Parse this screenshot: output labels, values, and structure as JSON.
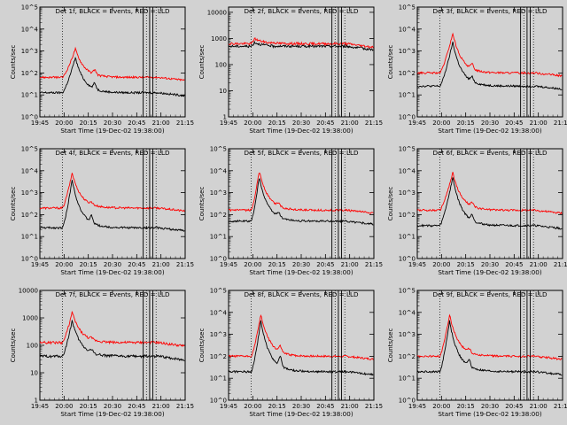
{
  "figure": {
    "background": "#d2d2d2",
    "xtick_labels": [
      "19:45",
      "20:00",
      "20:15",
      "20:30",
      "20:45",
      "21:00",
      "21:15"
    ],
    "xlabel": "Start Time (19-Dec-02 19:38:00)",
    "ylabel": "Counts/sec",
    "series_colors": {
      "events": "#000000",
      "lld": "#ff0000"
    }
  },
  "chart_data": [
    {
      "type": "line",
      "title": "Det 1f, BLACK = Events, RED = LLD",
      "xlabel": "Start Time (19-Dec-02 19:38:00)",
      "ylabel": "Counts/sec",
      "yscale": "log",
      "yticks": [
        "10^0",
        "10^1",
        "10^2",
        "10^3",
        "10^4",
        "10^5"
      ],
      "ylim_log": [
        0,
        5
      ],
      "xlim_min": [
        7,
        97
      ],
      "xticks": [
        "19:45",
        "20:00",
        "20:15",
        "20:30",
        "20:45",
        "21:00",
        "21:15"
      ],
      "series": [
        {
          "name": "Events",
          "color": "#000000",
          "base": 1.1,
          "peak": 2.7,
          "peak_at": 29,
          "shoulder": 1.6
        },
        {
          "name": "LLD",
          "color": "#ff0000",
          "base": 1.8,
          "peak": 3.1,
          "peak_at": 29,
          "shoulder": 2.2
        }
      ]
    },
    {
      "type": "line",
      "title": "Det 2f, BLACK = Events, RED = LLD",
      "xlabel": "Start Time (19-Dec-02 19:38:00)",
      "ylabel": "Counts/sec",
      "yscale": "log",
      "yticks": [
        "1",
        "10",
        "100",
        "1000",
        "10000"
      ],
      "ylim_log": [
        0,
        4.2
      ],
      "xlim_min": [
        7,
        97
      ],
      "xticks": [
        "19:45",
        "20:00",
        "20:15",
        "20:30",
        "20:45",
        "21:00",
        "21:15"
      ],
      "series": [
        {
          "name": "Events",
          "color": "#000000",
          "base": 2.7,
          "peak": 2.85,
          "peak_at": 23,
          "shoulder": 2.65
        },
        {
          "name": "LLD",
          "color": "#ff0000",
          "base": 2.8,
          "peak": 3.0,
          "peak_at": 23,
          "shoulder": 2.85
        }
      ]
    },
    {
      "type": "line",
      "title": "Det 3f, BLACK = Events, RED = LLD",
      "xlabel": "Start Time (19-Dec-02 19:38:00)",
      "ylabel": "Counts/sec",
      "yscale": "log",
      "yticks": [
        "10^0",
        "10^1",
        "10^2",
        "10^3",
        "10^4",
        "10^5"
      ],
      "ylim_log": [
        0,
        5
      ],
      "xlim_min": [
        7,
        97
      ],
      "xticks": [
        "19:45",
        "20:00",
        "20:15",
        "20:30",
        "20:45",
        "21:00",
        "21:15"
      ],
      "series": [
        {
          "name": "Events",
          "color": "#000000",
          "base": 1.4,
          "peak": 3.4,
          "peak_at": 29,
          "shoulder": 1.8
        },
        {
          "name": "LLD",
          "color": "#ff0000",
          "base": 2.0,
          "peak": 3.8,
          "peak_at": 29,
          "shoulder": 2.4
        }
      ]
    },
    {
      "type": "line",
      "title": "Det 4f, BLACK = Events, RED = LLD",
      "xlabel": "Start Time (19-Dec-02 19:38:00)",
      "ylabel": "Counts/sec",
      "yscale": "log",
      "yticks": [
        "10^0",
        "10^1",
        "10^2",
        "10^3",
        "10^4",
        "10^5"
      ],
      "ylim_log": [
        0,
        5
      ],
      "xlim_min": [
        7,
        97
      ],
      "xticks": [
        "19:45",
        "20:00",
        "20:15",
        "20:30",
        "20:45",
        "21:00",
        "21:15"
      ],
      "series": [
        {
          "name": "Events",
          "color": "#000000",
          "base": 1.4,
          "peak": 3.6,
          "peak_at": 27,
          "shoulder": 2.0
        },
        {
          "name": "LLD",
          "color": "#ff0000",
          "base": 2.3,
          "peak": 3.9,
          "peak_at": 27,
          "shoulder": 2.5
        }
      ]
    },
    {
      "type": "line",
      "title": "Det 5f, BLACK = Events, RED = LLD",
      "xlabel": "Start Time (19-Dec-02 19:38:00)",
      "ylabel": "Counts/sec",
      "yscale": "log",
      "yticks": [
        "10^0",
        "10^1",
        "10^2",
        "10^3",
        "10^4",
        "10^5"
      ],
      "ylim_log": [
        0,
        5
      ],
      "xlim_min": [
        7,
        97
      ],
      "xticks": [
        "19:45",
        "20:00",
        "20:15",
        "20:30",
        "20:45",
        "21:00",
        "21:15"
      ],
      "series": [
        {
          "name": "Events",
          "color": "#000000",
          "base": 1.7,
          "peak": 3.7,
          "peak_at": 26,
          "shoulder": 2.1
        },
        {
          "name": "LLD",
          "color": "#ff0000",
          "base": 2.2,
          "peak": 4.0,
          "peak_at": 26,
          "shoulder": 2.5
        }
      ]
    },
    {
      "type": "line",
      "title": "Det 6f, BLACK = Events, RED = LLD",
      "xlabel": "Start Time (19-Dec-02 19:38:00)",
      "ylabel": "Counts/sec",
      "yscale": "log",
      "yticks": [
        "10^0",
        "10^1",
        "10^2",
        "10^3",
        "10^4",
        "10^5"
      ],
      "ylim_log": [
        0,
        5
      ],
      "xlim_min": [
        7,
        97
      ],
      "xticks": [
        "19:45",
        "20:00",
        "20:15",
        "20:30",
        "20:45",
        "21:00",
        "21:15"
      ],
      "series": [
        {
          "name": "Events",
          "color": "#000000",
          "base": 1.5,
          "peak": 3.7,
          "peak_at": 29,
          "shoulder": 2.0
        },
        {
          "name": "LLD",
          "color": "#ff0000",
          "base": 2.2,
          "peak": 3.9,
          "peak_at": 29,
          "shoulder": 2.5
        }
      ]
    },
    {
      "type": "line",
      "title": "Det 7f, BLACK = Events, RED = LLD",
      "xlabel": "Start Time (19-Dec-02 19:38:00)",
      "ylabel": "Counts/sec",
      "yscale": "log",
      "yticks": [
        "1",
        "10",
        "100",
        "1000",
        "10000"
      ],
      "ylim_log": [
        0,
        4
      ],
      "xlim_min": [
        7,
        97
      ],
      "xticks": [
        "19:45",
        "20:00",
        "20:15",
        "20:30",
        "20:45",
        "21:00",
        "21:15"
      ],
      "series": [
        {
          "name": "Events",
          "color": "#000000",
          "base": 1.6,
          "peak": 2.9,
          "peak_at": 27,
          "shoulder": 1.8
        },
        {
          "name": "LLD",
          "color": "#ff0000",
          "base": 2.1,
          "peak": 3.2,
          "peak_at": 27,
          "shoulder": 2.2
        }
      ]
    },
    {
      "type": "line",
      "title": "Det 8f, BLACK = Events, RED = LLD",
      "xlabel": "Start Time (19-Dec-02 19:38:00)",
      "ylabel": "Counts/sec",
      "yscale": "log",
      "yticks": [
        "10^0",
        "10^1",
        "10^2",
        "10^3",
        "10^4",
        "10^5"
      ],
      "ylim_log": [
        0,
        5
      ],
      "xlim_min": [
        7,
        97
      ],
      "xticks": [
        "19:45",
        "20:00",
        "20:15",
        "20:30",
        "20:45",
        "21:00",
        "21:15"
      ],
      "series": [
        {
          "name": "Events",
          "color": "#000000",
          "base": 1.3,
          "peak": 3.6,
          "peak_at": 27,
          "shoulder": 2.2
        },
        {
          "name": "LLD",
          "color": "#ff0000",
          "base": 2.0,
          "peak": 3.9,
          "peak_at": 27,
          "shoulder": 2.5
        }
      ]
    },
    {
      "type": "line",
      "title": "Det 9f, BLACK = Events, RED = LLD",
      "xlabel": "Start Time (19-Dec-02 19:38:00)",
      "ylabel": "Counts/sec",
      "yscale": "log",
      "yticks": [
        "10^0",
        "10^1",
        "10^2",
        "10^3",
        "10^4",
        "10^5"
      ],
      "ylim_log": [
        0,
        5
      ],
      "xlim_min": [
        7,
        97
      ],
      "xticks": [
        "19:45",
        "20:00",
        "20:15",
        "20:30",
        "20:45",
        "21:00",
        "21:15"
      ],
      "series": [
        {
          "name": "Events",
          "color": "#000000",
          "base": 1.3,
          "peak": 3.6,
          "peak_at": 27,
          "shoulder": 1.9
        },
        {
          "name": "LLD",
          "color": "#ff0000",
          "base": 2.0,
          "peak": 3.9,
          "peak_at": 27,
          "shoulder": 2.3
        }
      ]
    }
  ]
}
